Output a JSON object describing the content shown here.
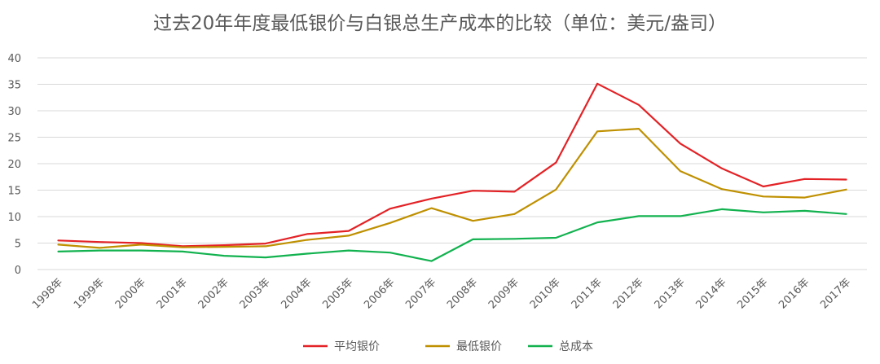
{
  "chart_data": {
    "type": "line",
    "title": "过去20年年度最低银价与白银总生产成本的比较（单位：美元/盎司）",
    "categories": [
      "1998年",
      "1999年",
      "2000年",
      "2001年",
      "2002年",
      "2003年",
      "2004年",
      "2005年",
      "2006年",
      "2007年",
      "2008年",
      "2009年",
      "2010年",
      "2011年",
      "2012年",
      "2013年",
      "2014年",
      "2015年",
      "2016年",
      "2017年"
    ],
    "ylim": [
      0,
      40
    ],
    "yticks": [
      "0",
      "5",
      "10",
      "15",
      "20",
      "25",
      "30",
      "35",
      "40"
    ],
    "grid": true,
    "legend_position": "bottom",
    "series": [
      {
        "name": "平均银价",
        "color": "#e32226",
        "values": [
          5.5,
          5.2,
          5.0,
          4.4,
          4.6,
          4.9,
          6.7,
          7.3,
          11.5,
          13.4,
          14.9,
          14.7,
          20.2,
          35.1,
          31.1,
          23.8,
          19.1,
          15.7,
          17.1,
          17.0
        ]
      },
      {
        "name": "最低银价",
        "color": "#bf9000",
        "values": [
          4.7,
          4.1,
          4.7,
          4.2,
          4.3,
          4.4,
          5.6,
          6.4,
          8.8,
          11.6,
          9.2,
          10.5,
          15.1,
          26.1,
          26.6,
          18.6,
          15.2,
          13.8,
          13.6,
          15.1
        ]
      },
      {
        "name": "总成本",
        "color": "#12b24f",
        "values": [
          3.4,
          3.6,
          3.6,
          3.4,
          2.6,
          2.3,
          3.0,
          3.6,
          3.2,
          1.6,
          5.7,
          5.8,
          6.0,
          8.9,
          10.1,
          10.1,
          11.4,
          10.8,
          11.1,
          10.5
        ]
      }
    ]
  }
}
